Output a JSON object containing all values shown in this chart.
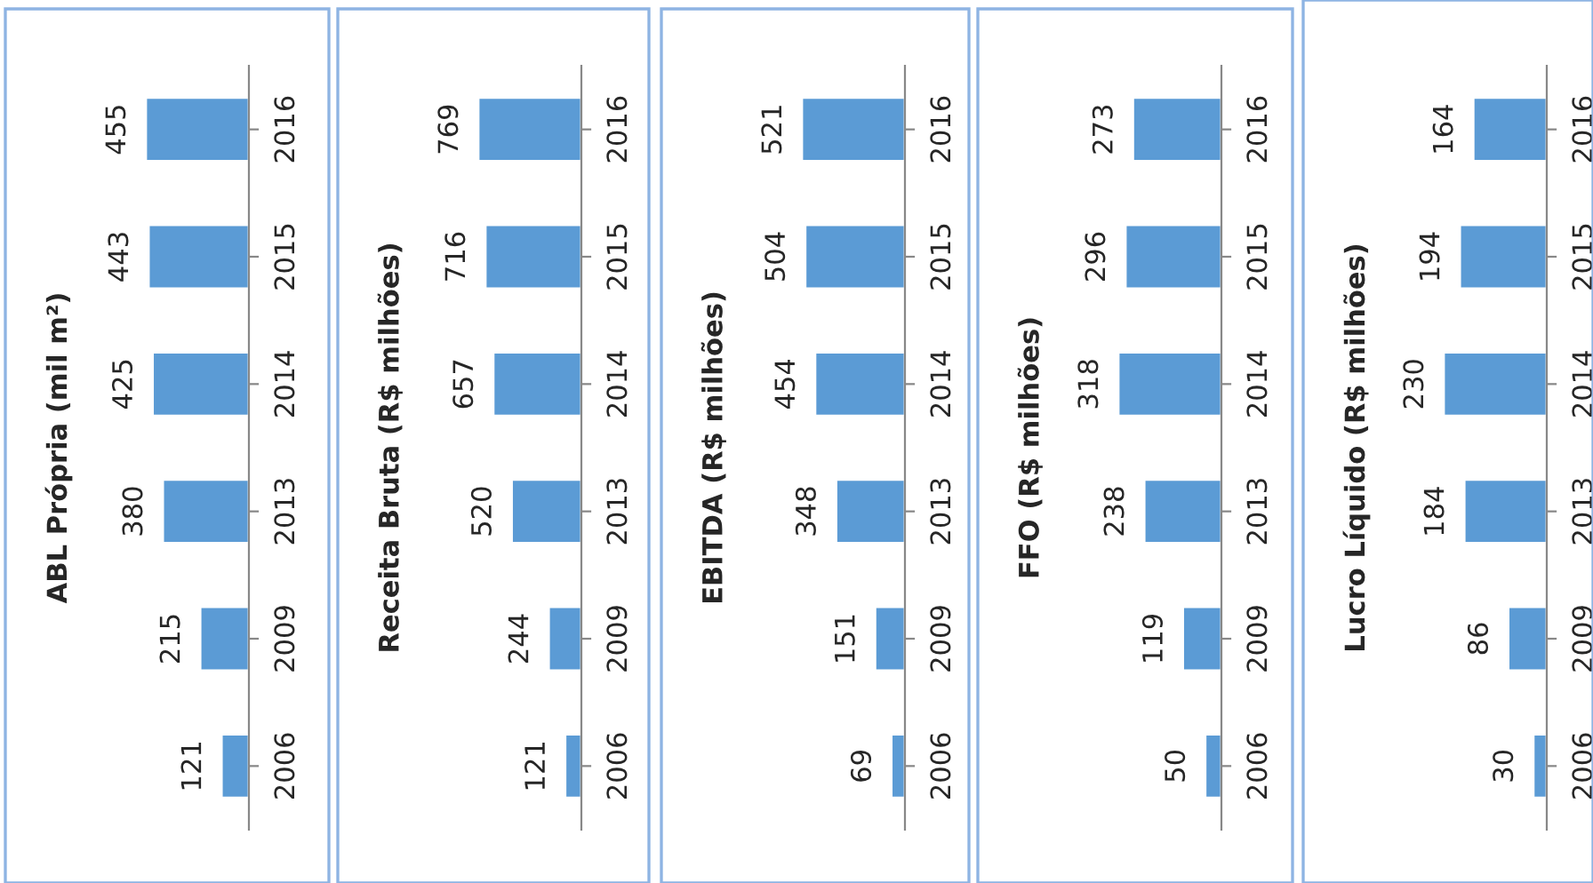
{
  "chart_data": [
    {
      "type": "bar",
      "orientation": "horizontal",
      "title": "ABL Própria (mil m²)",
      "categories": [
        "2016",
        "2015",
        "2014",
        "2013",
        "2009",
        "2006"
      ],
      "values": [
        455,
        443,
        425,
        380,
        215,
        121
      ],
      "color": "#5b9bd5",
      "data_labels": true
    },
    {
      "type": "bar",
      "orientation": "horizontal",
      "title": "Receita Bruta (R$ milhões)",
      "categories": [
        "2016",
        "2015",
        "2014",
        "2013",
        "2009",
        "2006"
      ],
      "values": [
        769,
        716,
        657,
        520,
        244,
        121
      ],
      "color": "#5b9bd5",
      "data_labels": true
    },
    {
      "type": "bar",
      "orientation": "horizontal",
      "title": "EBITDA (R$ milhões)",
      "categories": [
        "2016",
        "2015",
        "2014",
        "2013",
        "2009",
        "2006"
      ],
      "values": [
        521,
        504,
        454,
        348,
        151,
        69
      ],
      "color": "#5b9bd5",
      "data_labels": true
    },
    {
      "type": "bar",
      "orientation": "horizontal",
      "title": "FFO (R$ milhões)",
      "categories": [
        "2016",
        "2015",
        "2014",
        "2013",
        "2009",
        "2006"
      ],
      "values": [
        273,
        296,
        318,
        238,
        119,
        50
      ],
      "color": "#5b9bd5",
      "data_labels": true
    },
    {
      "type": "bar",
      "orientation": "horizontal",
      "title": "Lucro Líquido (R$ milhões)",
      "categories": [
        "2016",
        "2015",
        "2014",
        "2013",
        "2009",
        "2006"
      ],
      "values": [
        164,
        194,
        230,
        184,
        86,
        30
      ],
      "color": "#5b9bd5",
      "data_labels": true
    }
  ]
}
